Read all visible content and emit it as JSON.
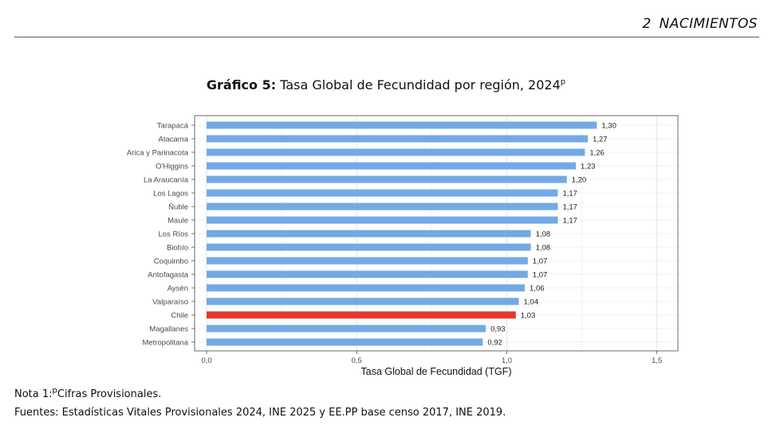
{
  "header": {
    "section_number": "2",
    "section_title": "NACIMIENTOS"
  },
  "title": {
    "prefix": "Gráfico 5:",
    "text": "Tasa Global de Fecundidad por región, 2024",
    "superscript": "p"
  },
  "chart_data": {
    "type": "bar",
    "orientation": "horizontal",
    "categories": [
      "Tarapacá",
      "Atacama",
      "Arica y Parinacota",
      "O'Higgins",
      "La Araucanía",
      "Los Lagos",
      "Ñuble",
      "Maule",
      "Los Ríos",
      "Biobío",
      "Coquimbo",
      "Antofagasta",
      "Aysén",
      "Valparaíso",
      "Chile",
      "Magallanes",
      "Metropolitana"
    ],
    "values": [
      1.3,
      1.27,
      1.26,
      1.23,
      1.2,
      1.17,
      1.17,
      1.17,
      1.08,
      1.08,
      1.07,
      1.07,
      1.06,
      1.04,
      1.03,
      0.93,
      0.92
    ],
    "value_labels": [
      "1,30",
      "1,27",
      "1,26",
      "1,23",
      "1,20",
      "1,17",
      "1,17",
      "1,17",
      "1,08",
      "1,08",
      "1,07",
      "1,07",
      "1,06",
      "1,04",
      "1,03",
      "0,93",
      "0,92"
    ],
    "xlabel": "Tasa Global de Fecundidad (TGF)",
    "xlim": [
      -0.04,
      1.57
    ],
    "xticks": [
      0,
      0.5,
      1.0,
      1.5
    ],
    "xtick_labels": [
      "0,0",
      "0,5",
      "1,0",
      "1,5"
    ],
    "grid": true,
    "colors": {
      "default": "#74A9E6",
      "highlight": "#E3382B"
    },
    "highlight": "Chile"
  },
  "notes": {
    "note_prefix": "Nota 1:",
    "note_superscript": "p",
    "note_text": "Cifras Provisionales.",
    "sources": "Fuentes: Estadísticas Vitales Provisionales 2024, INE 2025 y EE.PP base censo 2017, INE 2019."
  }
}
